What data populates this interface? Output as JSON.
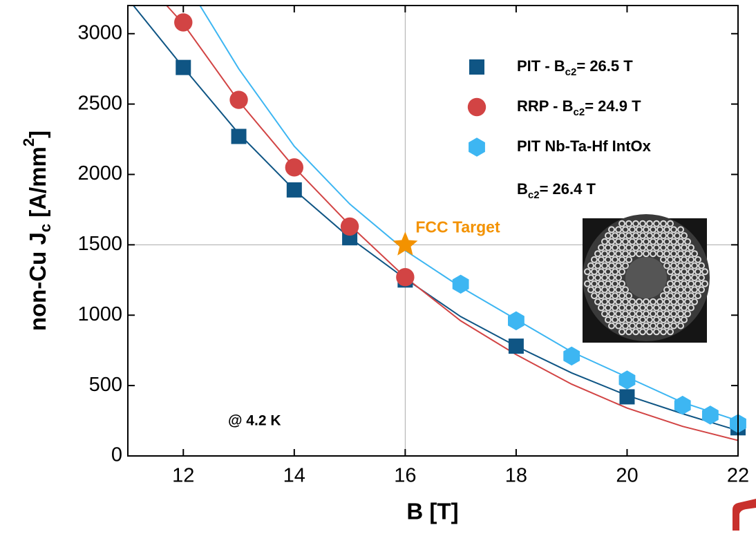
{
  "chart_data": {
    "type": "scatter-fit",
    "xlabel": "B [T]",
    "ylabel": [
      "non-Cu  J",
      "c",
      "  [A/mm",
      "2",
      "]"
    ],
    "xlim": [
      11,
      22
    ],
    "xticks": [
      12,
      14,
      16,
      18,
      20,
      22
    ],
    "ylim": [
      0,
      3200
    ],
    "yticks": [
      0,
      500,
      1000,
      1500,
      2000,
      2500,
      3000
    ],
    "series": [
      {
        "name": [
          [
            "PIT - B",
            "c2",
            "= 26.5 T"
          ]
        ],
        "color": "#0f5584",
        "marker": "square",
        "x": [
          12,
          13,
          14,
          15,
          16,
          18,
          20,
          22
        ],
        "values": [
          2760,
          2270,
          1890,
          1550,
          1250,
          780,
          420,
          200
        ],
        "fit_x": [
          11.1,
          12,
          13,
          14,
          15,
          16,
          17,
          18,
          19,
          20,
          21,
          22
        ],
        "fit_values": [
          3200,
          2760,
          2290,
          1890,
          1550,
          1260,
          990,
          780,
          590,
          430,
          300,
          180
        ]
      },
      {
        "name": [
          [
            "RRP - B",
            "c2",
            "= 24.9 T"
          ]
        ],
        "color": "#d24444",
        "marker": "circle",
        "x": [
          12,
          13,
          14,
          15,
          16
        ],
        "values": [
          3080,
          2530,
          2050,
          1630,
          1270
        ],
        "fit_x": [
          11.7,
          12,
          13,
          14,
          15,
          16,
          17,
          18,
          19,
          20,
          21,
          22
        ],
        "fit_values": [
          3200,
          3070,
          2520,
          2050,
          1640,
          1270,
          960,
          720,
          510,
          340,
          210,
          110
        ]
      },
      {
        "name": [
          [
            "PIT Nb-Ta-Hf IntOx"
          ],
          [
            "B",
            "c2",
            "= 26.4 T"
          ]
        ],
        "color": "#3db6f2",
        "marker": "hexagon",
        "x": [
          17,
          18,
          19,
          20,
          21,
          21.5,
          22
        ],
        "values": [
          1220,
          960,
          710,
          540,
          360,
          290,
          230
        ],
        "fit_x": [
          12.3,
          13,
          14,
          15,
          16,
          17,
          18,
          19,
          20,
          21,
          22
        ],
        "fit_values": [
          3200,
          2750,
          2200,
          1790,
          1460,
          1200,
          970,
          740,
          560,
          380,
          250
        ]
      }
    ],
    "target": {
      "label": "FCC Target",
      "x": 16,
      "value": 1500,
      "color": "#f39200"
    },
    "annotation": "@ 4.2 K"
  }
}
